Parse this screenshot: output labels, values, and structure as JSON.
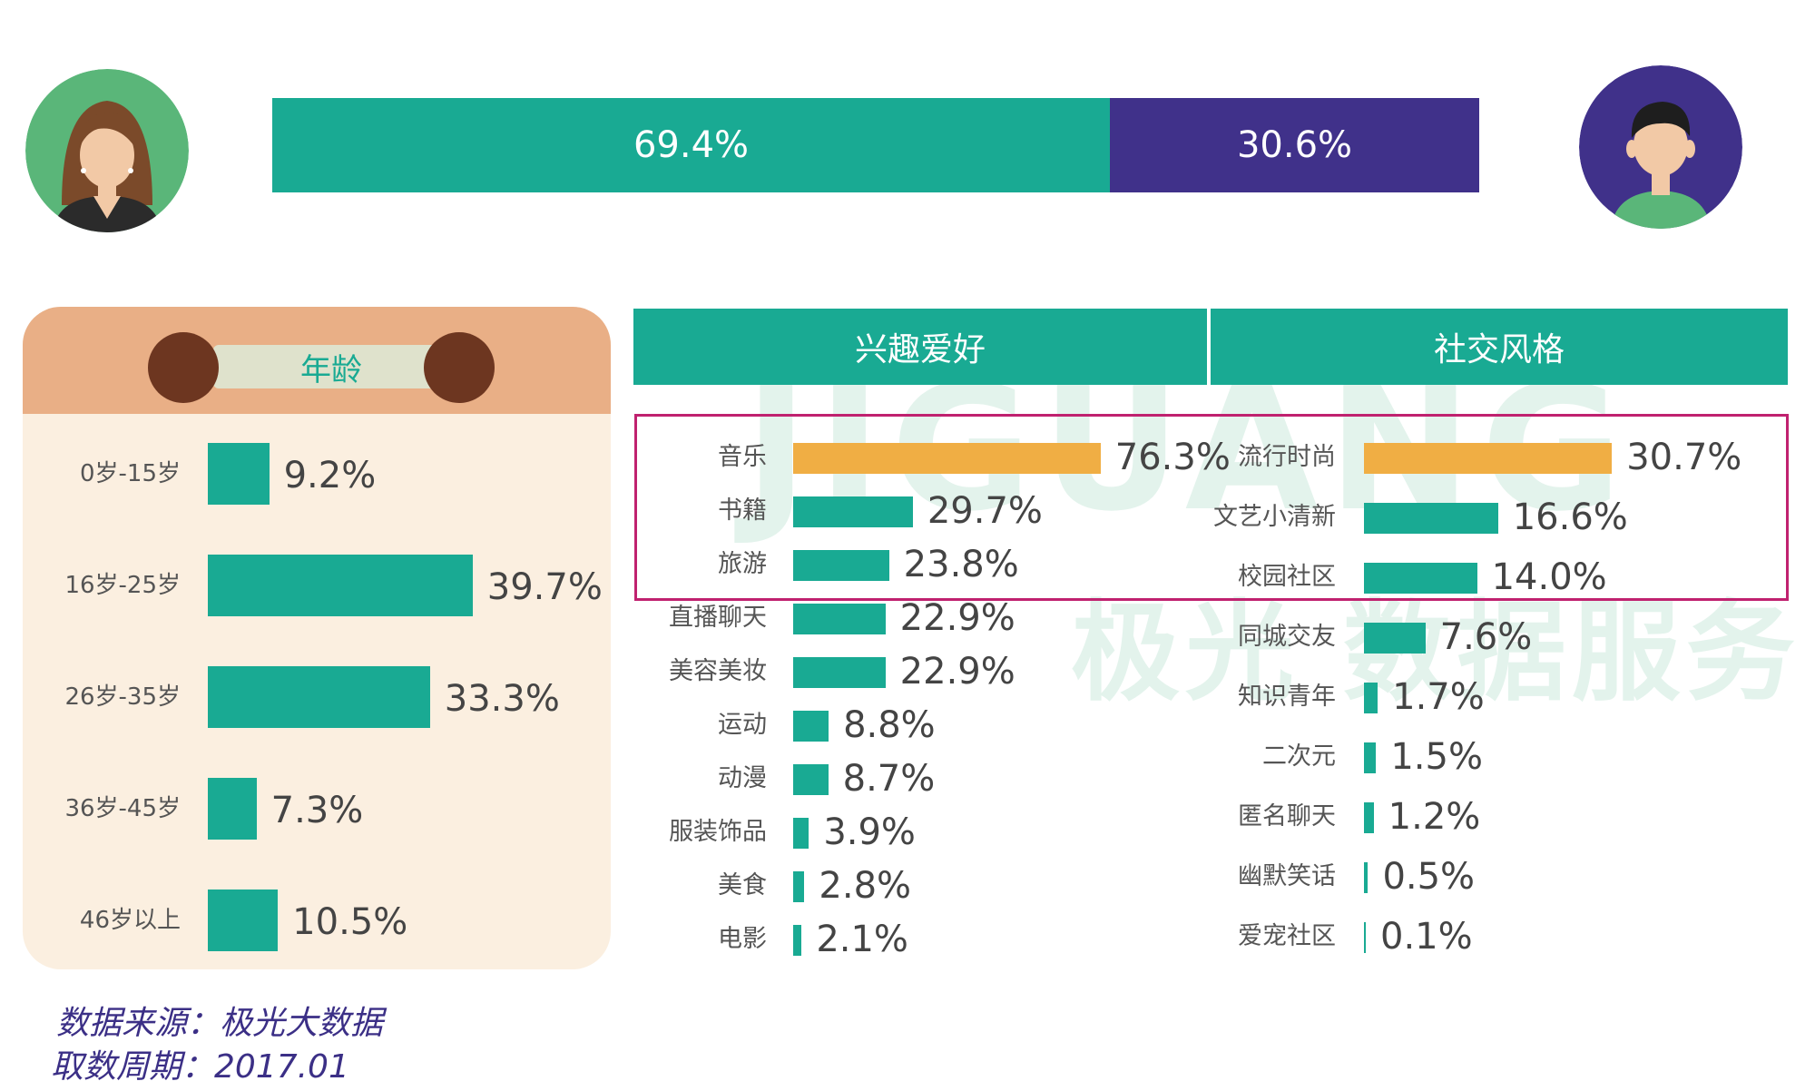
{
  "colors": {
    "teal": "#19aa93",
    "purple": "#40318a",
    "orange": "#f0ae44",
    "highlight_border": "#c0216f"
  },
  "gender": {
    "female_pct": "69.4%",
    "male_pct": "30.6%",
    "female_value": 69.4,
    "male_value": 30.6,
    "female_icon": "female-avatar-icon",
    "male_icon": "male-avatar-icon"
  },
  "watermark": {
    "text_en": "JIGUANG",
    "text_cn": "极光 数据服务"
  },
  "age": {
    "title": "年龄"
  },
  "panels": {
    "interest_title": "兴趣爱好",
    "social_title": "社交风格"
  },
  "chart_data": [
    {
      "type": "bar",
      "orientation": "horizontal",
      "title": "年龄",
      "categories": [
        "0岁-15岁",
        "16岁-25岁",
        "26岁-35岁",
        "36岁-45岁",
        "46岁以上"
      ],
      "values": [
        9.2,
        39.7,
        33.3,
        7.3,
        10.5
      ],
      "labels": [
        "9.2%",
        "39.7%",
        "33.3%",
        "7.3%",
        "10.5%"
      ]
    },
    {
      "type": "bar",
      "orientation": "horizontal",
      "title": "兴趣爱好",
      "categories": [
        "音乐",
        "书籍",
        "旅游",
        "直播聊天",
        "美容美妆",
        "运动",
        "动漫",
        "服装饰品",
        "美食",
        "电影"
      ],
      "values": [
        76.3,
        29.7,
        23.8,
        22.9,
        22.9,
        8.8,
        8.7,
        3.9,
        2.8,
        2.1
      ],
      "labels": [
        "76.3%",
        "29.7%",
        "23.8%",
        "22.9%",
        "22.9%",
        "8.8%",
        "8.7%",
        "3.9%",
        "2.8%",
        "2.1%"
      ]
    },
    {
      "type": "bar",
      "orientation": "horizontal",
      "title": "社交风格",
      "categories": [
        "流行时尚",
        "文艺小清新",
        "校园社区",
        "同城交友",
        "知识青年",
        "二次元",
        "匿名聊天",
        "幽默笑话",
        "爱宠社区"
      ],
      "values": [
        30.7,
        16.6,
        14.0,
        7.6,
        1.7,
        1.5,
        1.2,
        0.5,
        0.1
      ],
      "labels": [
        "30.7%",
        "16.6%",
        "14.0%",
        "7.6%",
        "1.7%",
        "1.5%",
        "1.2%",
        "0.5%",
        "0.1%"
      ]
    }
  ],
  "footer": {
    "source": "数据来源：极光大数据",
    "period": "取数周期：2017.01"
  }
}
